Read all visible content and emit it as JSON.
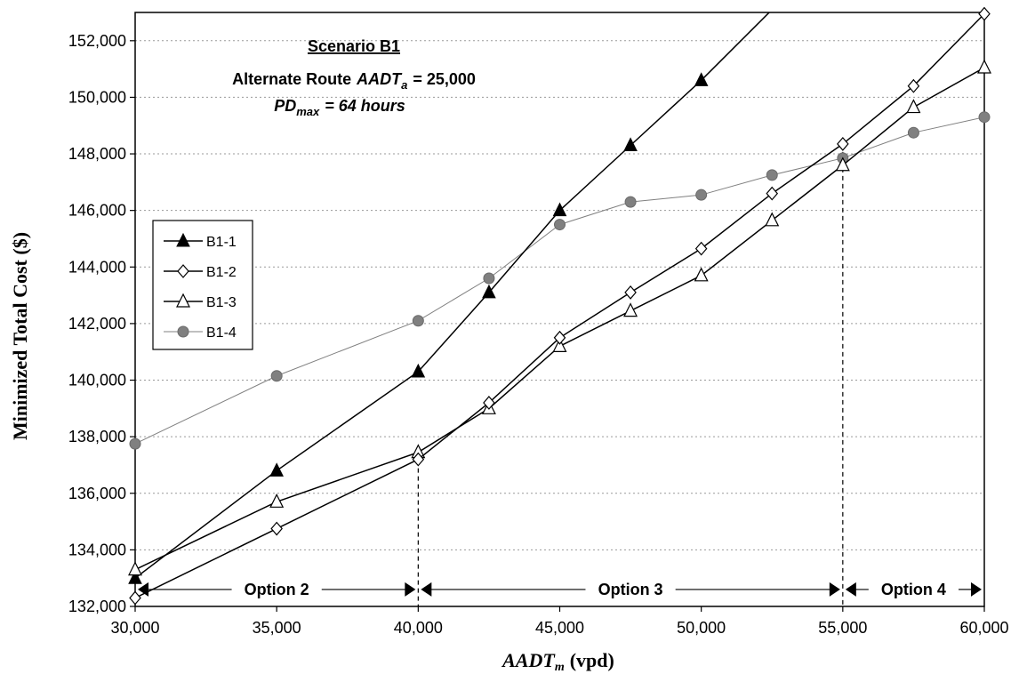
{
  "chart_data": {
    "type": "line",
    "title": "",
    "xlabel_main": "AADT",
    "xlabel_sub": "m",
    "xlabel_units": "(vpd)",
    "ylabel": "Minimized Total Cost ($)",
    "xlim": [
      30000,
      60000
    ],
    "ylim": [
      132000,
      153000
    ],
    "xticks": [
      30000,
      35000,
      40000,
      45000,
      50000,
      55000,
      60000
    ],
    "xtick_labels": [
      "30,000",
      "35,000",
      "40,000",
      "45,000",
      "50,000",
      "55,000",
      "60,000"
    ],
    "yticks": [
      132000,
      134000,
      136000,
      138000,
      140000,
      142000,
      144000,
      146000,
      148000,
      150000,
      152000
    ],
    "ytick_labels": [
      "132,000",
      "134,000",
      "136,000",
      "138,000",
      "140,000",
      "142,000",
      "144,000",
      "146,000",
      "148,000",
      "150,000",
      "152,000"
    ],
    "grid": true,
    "legend_position": "left",
    "series": [
      {
        "name": "B1-1",
        "marker": "filled-triangle",
        "color": "#000000",
        "x": [
          30000,
          35000,
          40000,
          42500,
          45000,
          47500,
          50000
        ],
        "y": [
          133000,
          136800,
          140300,
          143100,
          146000,
          148300,
          150600
        ],
        "extension": {
          "x": [
            50000,
            52500
          ],
          "y": [
            150600,
            153100
          ]
        }
      },
      {
        "name": "B1-2",
        "marker": "hollow-diamond",
        "color": "#000000",
        "x": [
          30000,
          35000,
          40000,
          42500,
          45000,
          47500,
          50000,
          52500,
          55000,
          57500,
          60000
        ],
        "y": [
          132300,
          134750,
          137200,
          139200,
          141500,
          143100,
          144650,
          146600,
          148350,
          150400,
          152950
        ]
      },
      {
        "name": "B1-3",
        "marker": "hollow-triangle",
        "color": "#000000",
        "x": [
          30000,
          35000,
          40000,
          42500,
          45000,
          47500,
          50000,
          52500,
          55000,
          57500,
          60000
        ],
        "y": [
          133300,
          135700,
          137450,
          139000,
          141200,
          142450,
          143700,
          145650,
          147600,
          149650,
          151050
        ]
      },
      {
        "name": "B1-4",
        "marker": "filled-circle",
        "color": "#808080",
        "x": [
          30000,
          35000,
          40000,
          42500,
          45000,
          47500,
          50000,
          52500,
          55000,
          57500,
          60000
        ],
        "y": [
          137750,
          140150,
          142100,
          143600,
          145500,
          146300,
          146550,
          147250,
          147850,
          148750,
          149300
        ]
      }
    ],
    "annotations": {
      "scenario_title": "Scenario B1",
      "alt_route_prefix": "Alternate Route",
      "alt_route_var": "AADT",
      "alt_route_sub": "a",
      "alt_route_value": "= 25,000",
      "pd_var": "PD",
      "pd_sub": "max",
      "pd_value": "= 64 hours"
    },
    "vertical_dividers": [
      40000,
      55000
    ],
    "option_ranges": [
      {
        "label": "Option 2",
        "x_start": 30000,
        "x_end": 40000
      },
      {
        "label": "Option 3",
        "x_start": 40000,
        "x_end": 55000
      },
      {
        "label": "Option 4",
        "x_start": 55000,
        "x_end": 60000
      }
    ],
    "option_arrow_y": 132600
  }
}
